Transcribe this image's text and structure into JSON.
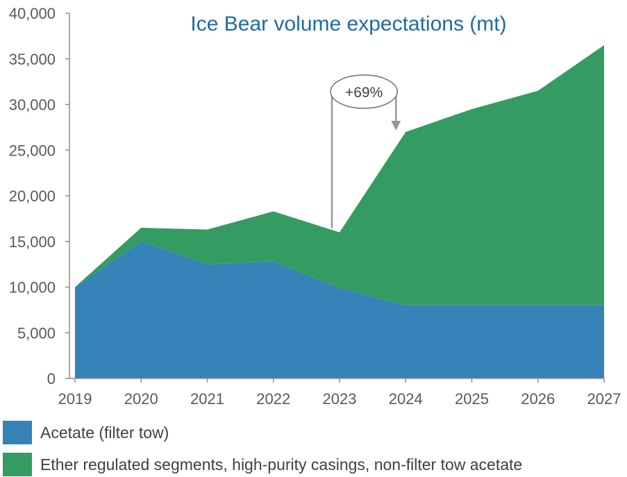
{
  "chart_data": {
    "type": "area",
    "stacked": true,
    "title": "Ice Bear volume expectations (mt)",
    "categories": [
      "2019",
      "2020",
      "2021",
      "2022",
      "2023",
      "2024",
      "2025",
      "2026",
      "2027"
    ],
    "ylim": [
      0,
      40000
    ],
    "yticks": [
      0,
      5000,
      10000,
      15000,
      20000,
      25000,
      30000,
      35000,
      40000
    ],
    "ytick_labels": [
      "0",
      "5,000",
      "10,000",
      "15,000",
      "20,000",
      "25,000",
      "30,000",
      "35,000",
      "40,000"
    ],
    "series": [
      {
        "name": "Acetate (filter tow)",
        "color": "#3583b7",
        "values": [
          10000,
          15000,
          12500,
          12800,
          9900,
          8000,
          8000,
          8000,
          8000
        ]
      },
      {
        "name": "Ether regulated segments, high-purity casings, non-filter tow acetate",
        "color": "#349c63",
        "values": [
          0,
          1500,
          3800,
          5500,
          6100,
          19000,
          21500,
          23500,
          28500
        ]
      }
    ],
    "annotation": {
      "text": "+69%",
      "from_category": "2023",
      "to_category": "2024",
      "from_value": 16000,
      "to_value": 27000
    },
    "grid": false,
    "legend_position": "bottom"
  }
}
